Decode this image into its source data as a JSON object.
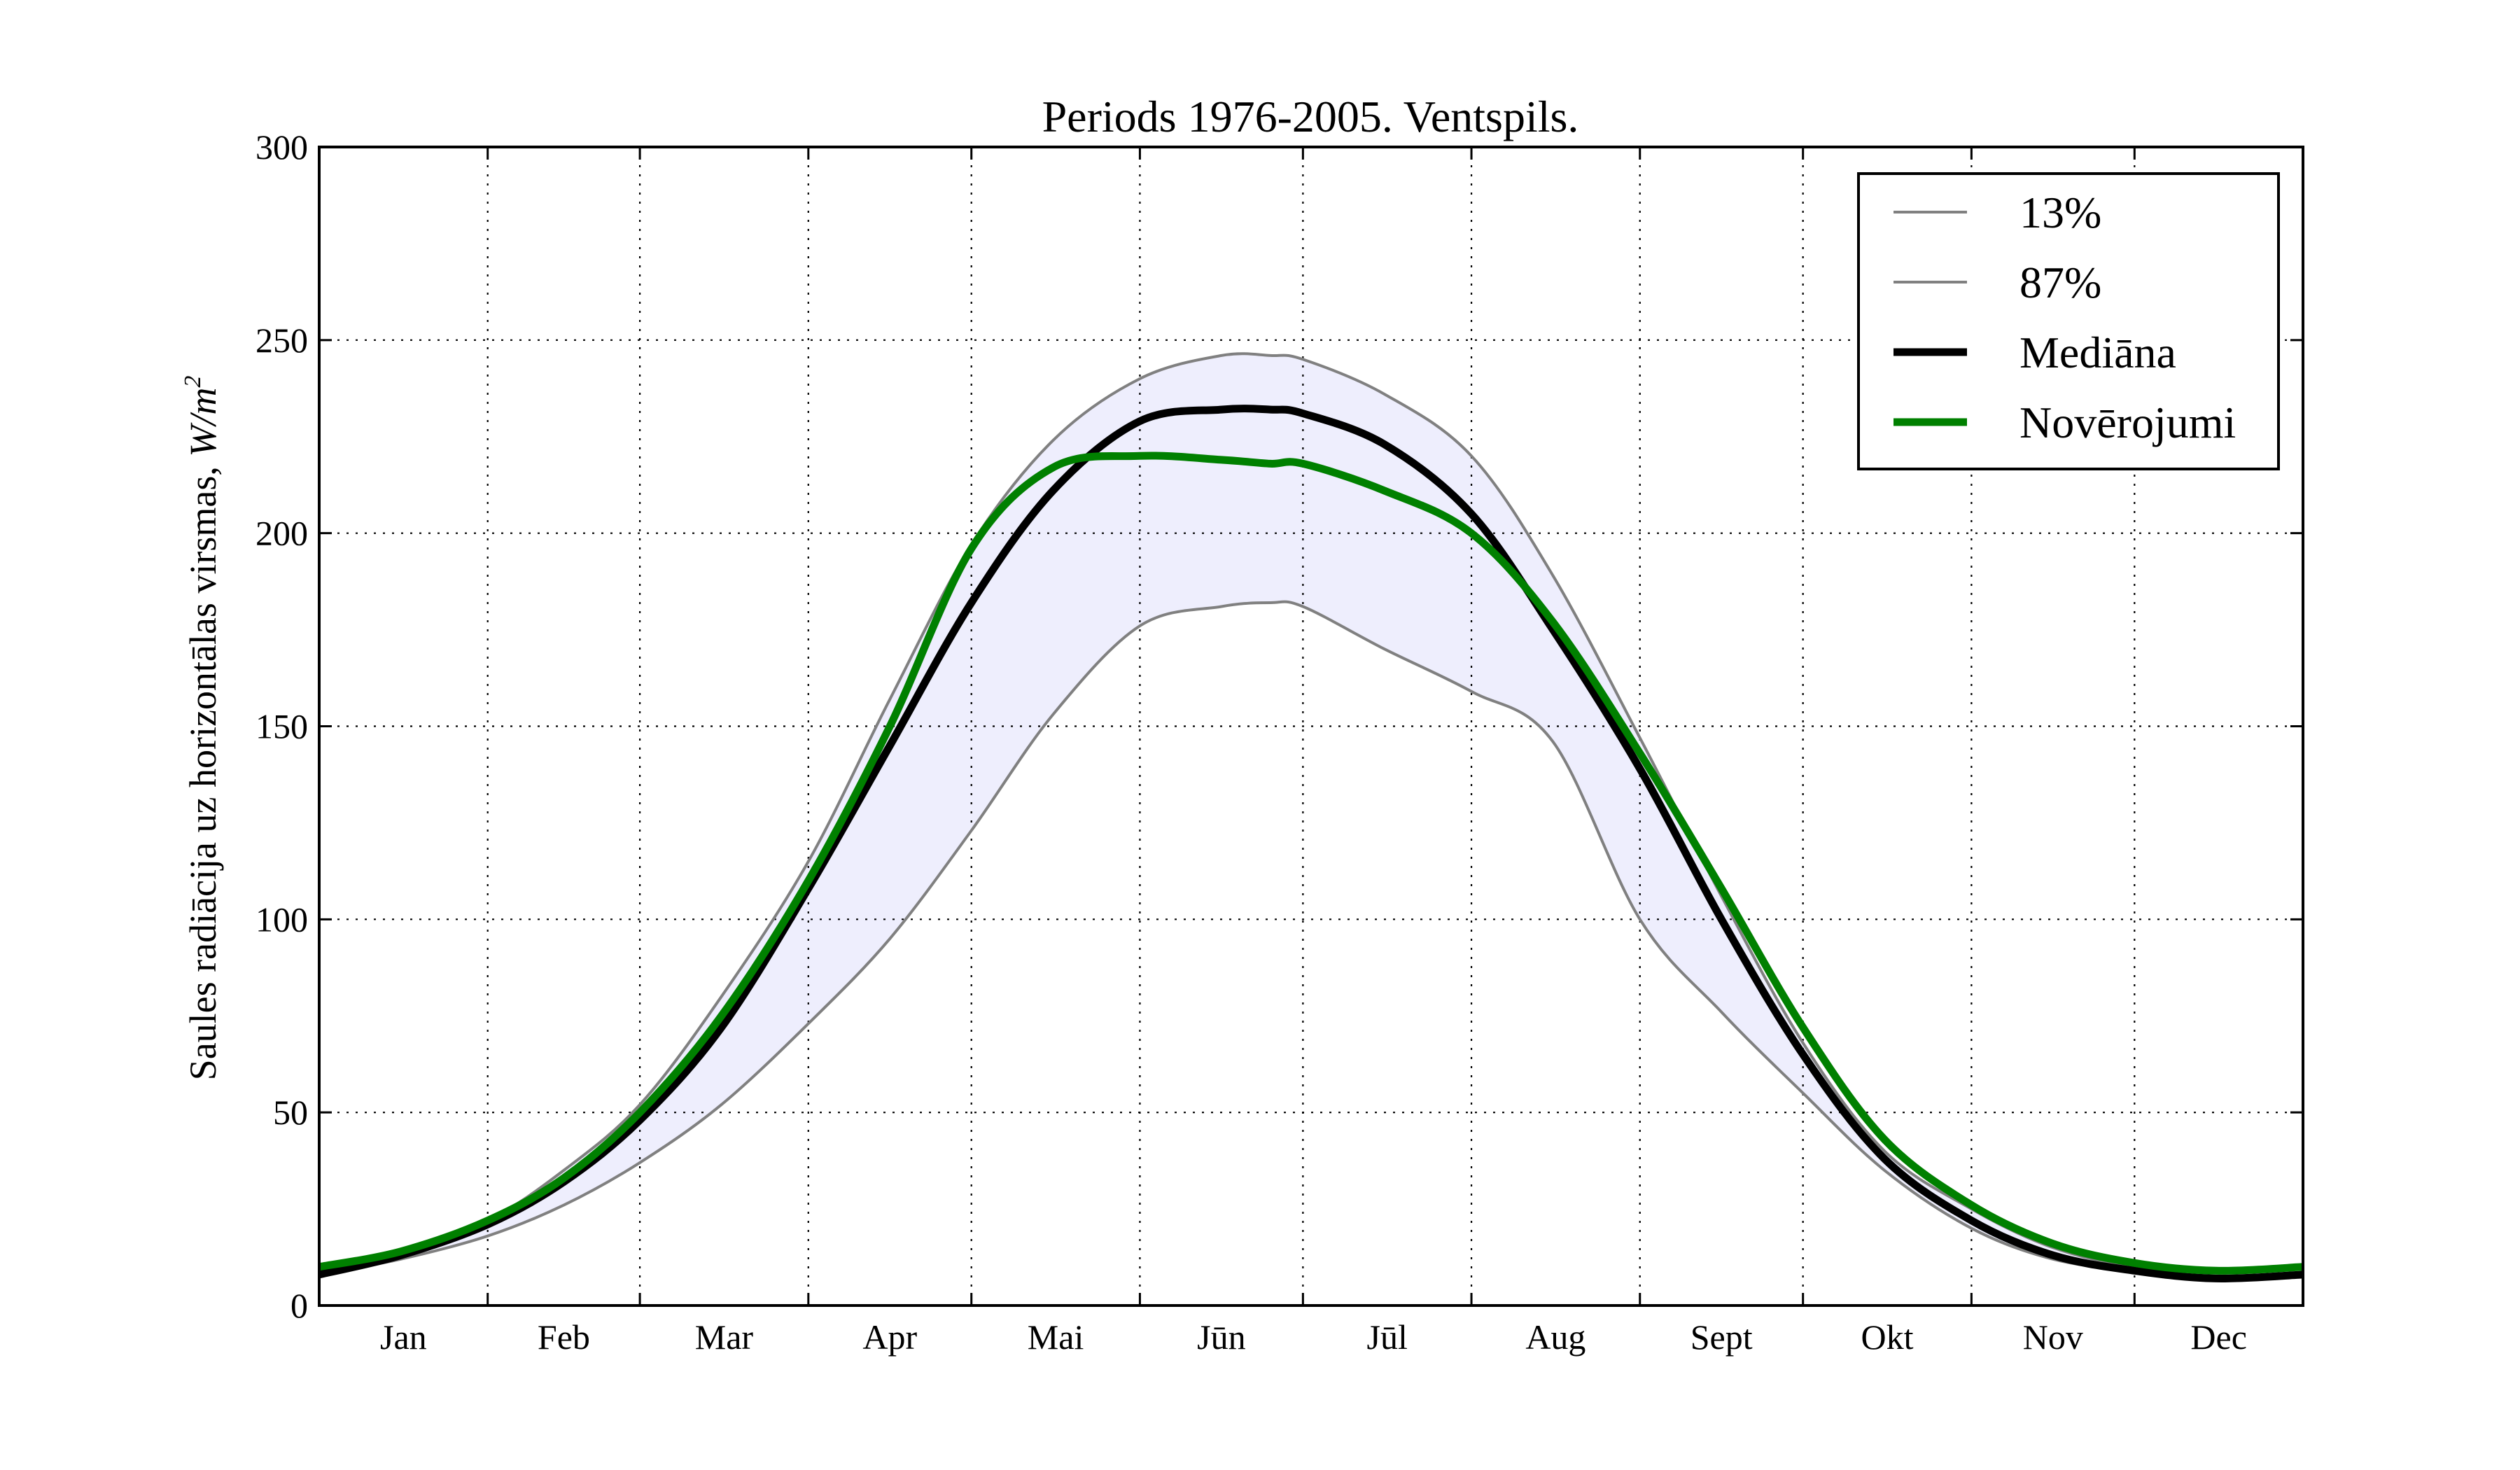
{
  "chart_data": {
    "type": "line",
    "title": "Periods 1976-2005. Ventspils.",
    "ylabel": "Saules radiācija uz horizontālas virsmas, W/m²",
    "ylabel_text": "Saules radiācija uz horizontālas virsmas, ",
    "ylabel_unit_base": "W/m",
    "ylabel_unit_sup": "2",
    "xlabel": "",
    "xlim": [
      0,
      365
    ],
    "ylim": [
      0,
      300
    ],
    "yticks": [
      0,
      50,
      100,
      150,
      200,
      250,
      300
    ],
    "ytick_labels": [
      "0",
      "50",
      "100",
      "150",
      "200",
      "250",
      "300"
    ],
    "month_boundaries": [
      0,
      31,
      59,
      90,
      120,
      151,
      181,
      212,
      243,
      273,
      304,
      334,
      365
    ],
    "month_labels": [
      "Jan",
      "Feb",
      "Mar",
      "Apr",
      "Mai",
      "Jūn",
      "Jūl",
      "Aug",
      "Sept",
      "Okt",
      "Nov",
      "Dec"
    ],
    "x": [
      0,
      15,
      31,
      45,
      59,
      74,
      90,
      105,
      120,
      135,
      151,
      166,
      175,
      181,
      196,
      212,
      227,
      243,
      258,
      273,
      288,
      304,
      319,
      334,
      349,
      365
    ],
    "series": [
      {
        "name": "13%",
        "color": "#808080",
        "width": 4,
        "values": [
          8,
          12,
          18,
          26,
          37,
          52,
          73,
          95,
          123,
          153,
          176,
          181,
          182,
          181,
          170,
          159,
          146,
          100,
          76,
          55,
          35,
          20,
          12,
          9,
          7,
          8
        ]
      },
      {
        "name": "87%",
        "color": "#808080",
        "width": 4,
        "values": [
          10,
          14,
          22,
          35,
          52,
          80,
          115,
          157,
          197,
          224,
          240,
          246,
          246,
          245,
          236,
          220,
          189,
          147,
          106,
          68,
          40,
          25,
          15,
          10,
          9,
          10
        ]
      },
      {
        "name": "Mediāna",
        "color": "#000000",
        "width": 11,
        "values": [
          8,
          13,
          21,
          32,
          48,
          72,
          108,
          145,
          182,
          211,
          229,
          232,
          232,
          231,
          223,
          205,
          175,
          139,
          100,
          65,
          38,
          22,
          13,
          9,
          7,
          8
        ]
      },
      {
        "name": "Novērojumi",
        "color": "#008000",
        "width": 11,
        "values": [
          10,
          14,
          22,
          33,
          50,
          75,
          110,
          150,
          196,
          217,
          220,
          219,
          218,
          218,
          211,
          200,
          177,
          143,
          108,
          72,
          43,
          26,
          16,
          11,
          9,
          10
        ]
      }
    ],
    "band": {
      "lower": "13%",
      "upper": "87%",
      "color": "#eeeefd"
    },
    "grid": true,
    "legend_position": "top-right"
  }
}
